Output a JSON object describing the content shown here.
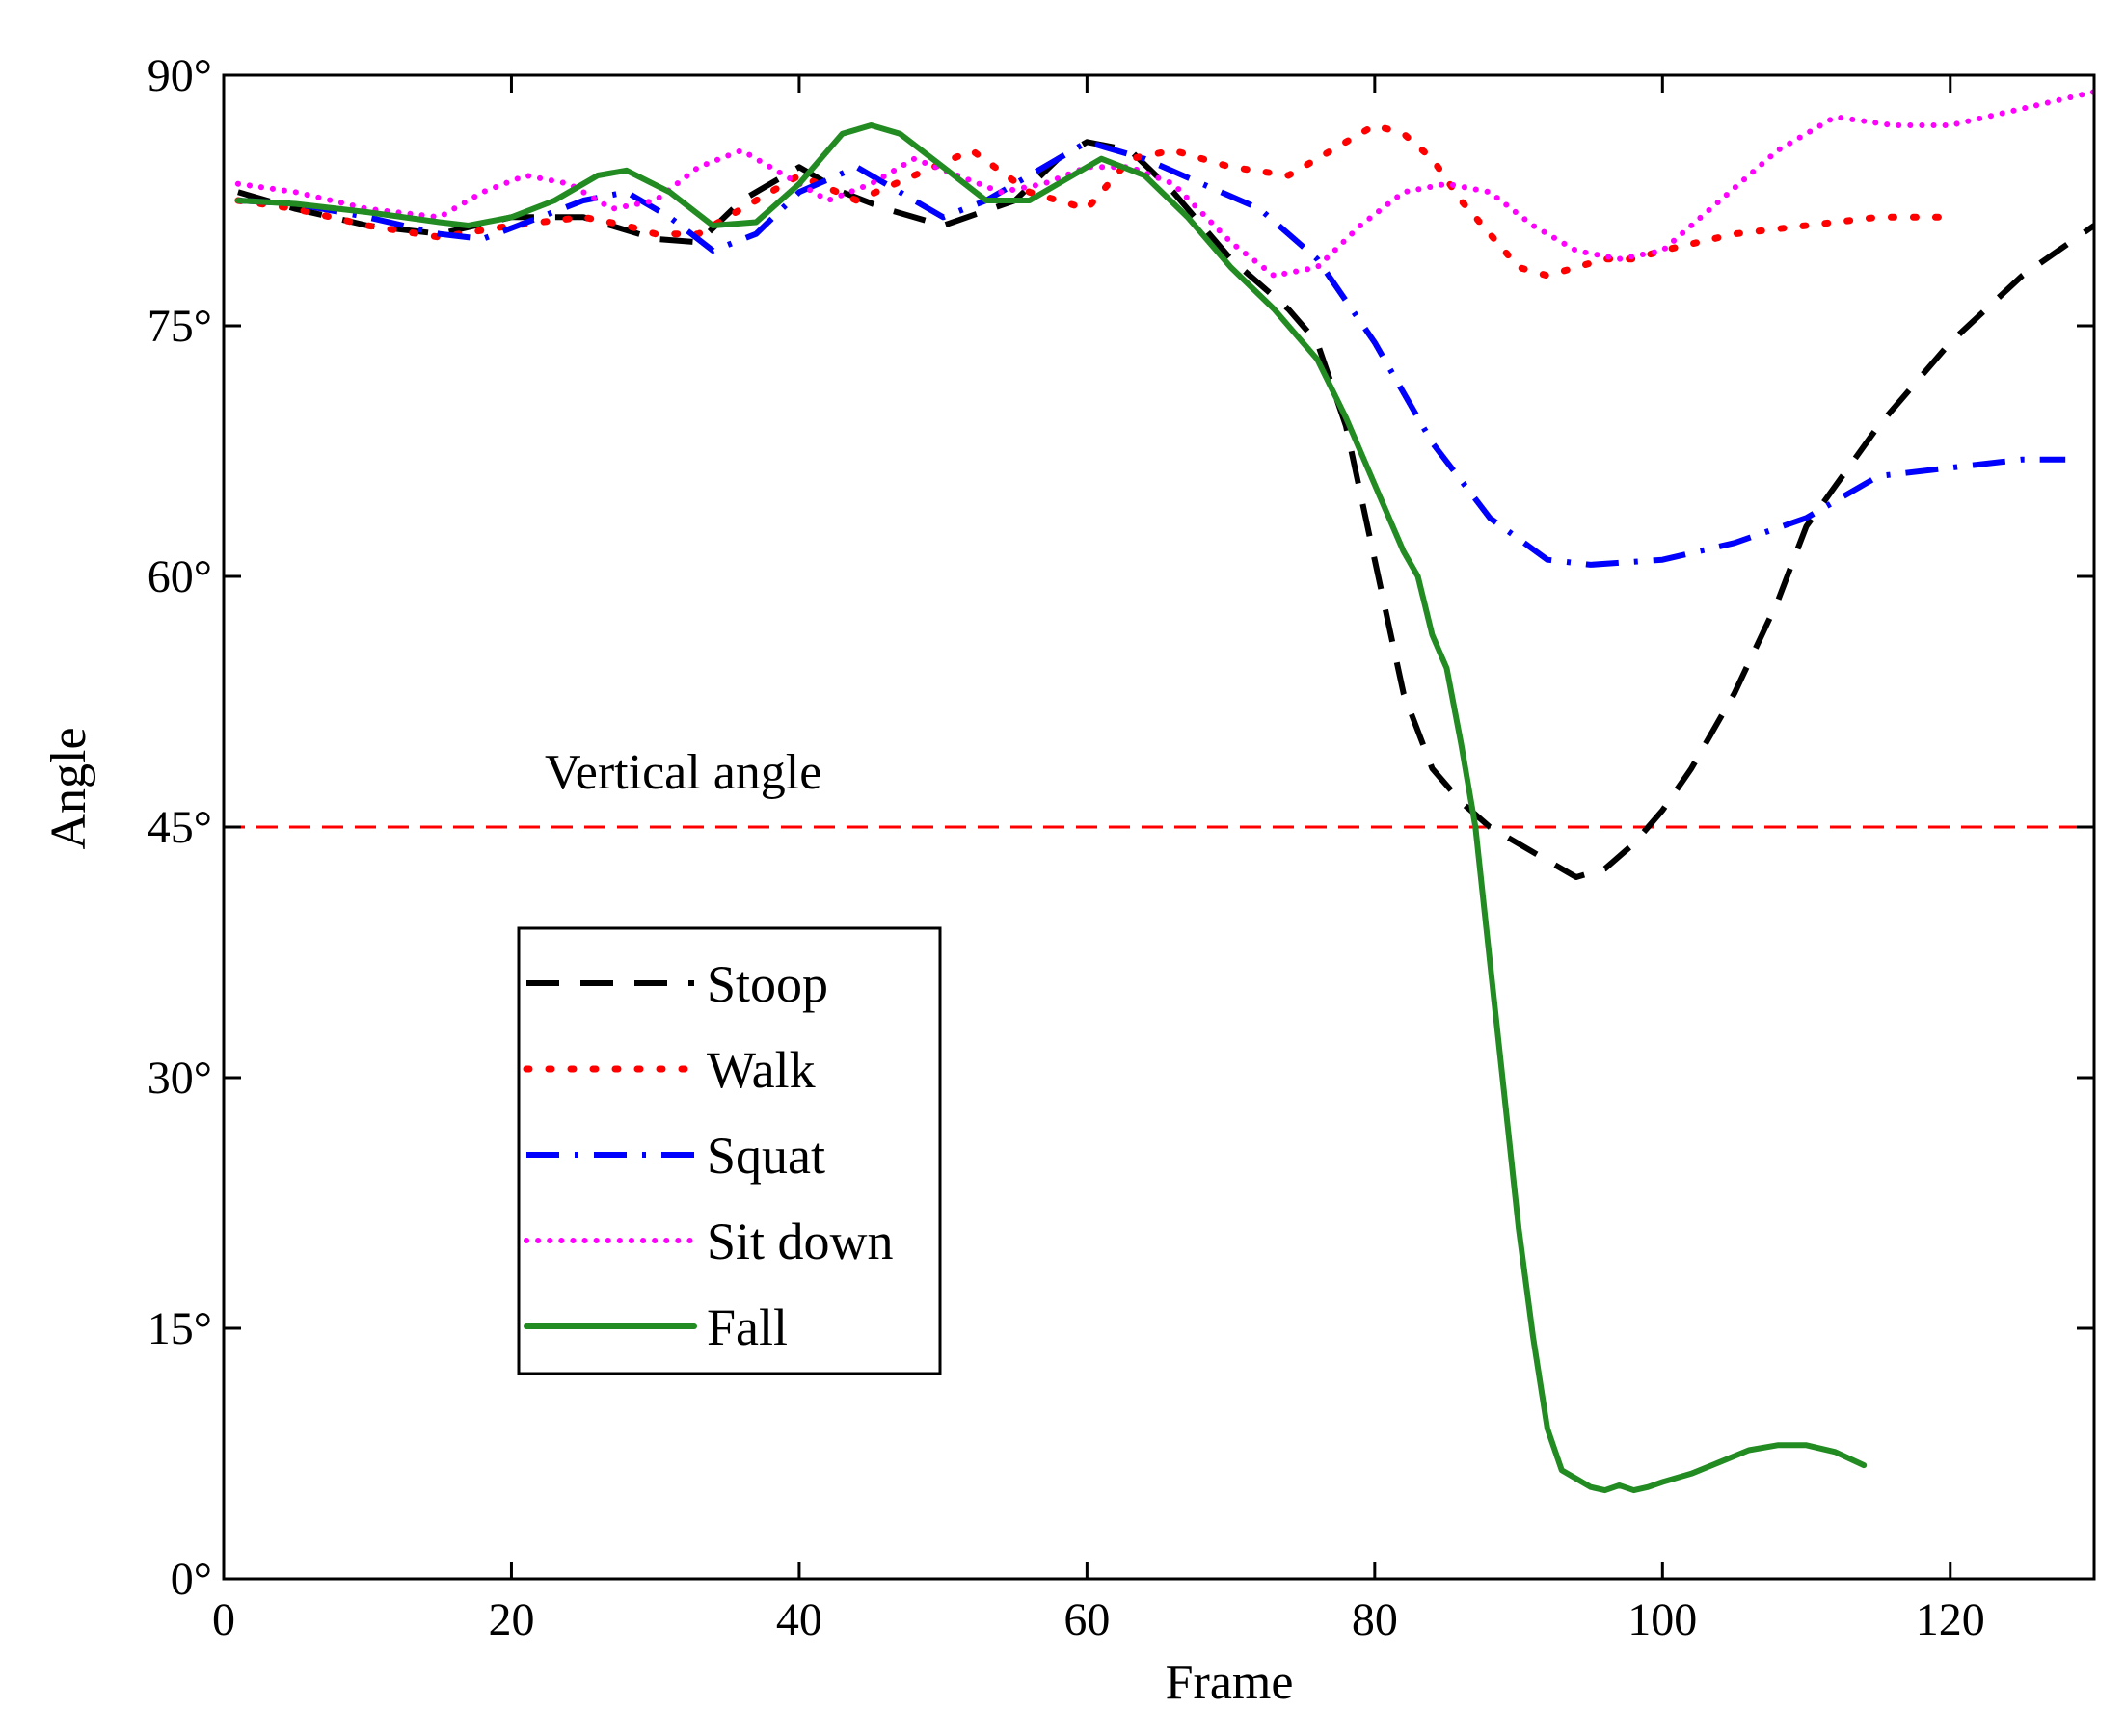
{
  "chart_data": {
    "type": "line",
    "title": "",
    "xlabel": "Frame",
    "ylabel": "Angle",
    "xlim": [
      0,
      130
    ],
    "ylim": [
      0,
      90
    ],
    "xticks": [
      0,
      20,
      40,
      60,
      80,
      100,
      120
    ],
    "xtick_labels": [
      "0",
      "20",
      "40",
      "60",
      "80",
      "100",
      "120"
    ],
    "yticks": [
      0,
      15,
      30,
      45,
      60,
      75,
      90
    ],
    "ytick_labels": [
      "0°",
      "15°",
      "30°",
      "45°",
      "60°",
      "75°",
      "90°"
    ],
    "grid": false,
    "legend_position": "lower-left",
    "threshold": {
      "label": "Vertical angle",
      "value": 45,
      "color": "#ff0000"
    },
    "series": [
      {
        "name": "Stoop",
        "color": "#000000",
        "style": "dashed",
        "x": [
          1,
          5,
          10,
          15,
          20,
          25,
          30,
          33,
          36,
          40,
          43,
          46,
          50,
          55,
          58,
          60,
          63,
          66,
          70,
          74,
          76,
          78,
          80,
          82,
          84,
          86,
          88,
          90,
          92,
          94,
          96,
          98,
          100,
          102,
          105,
          108,
          110,
          115,
          120,
          125,
          130
        ],
        "y": [
          83,
          82,
          81,
          80.5,
          81.5,
          81.5,
          80.2,
          80,
          82.5,
          84.5,
          83,
          82,
          81,
          82.5,
          85,
          86,
          85.5,
          83,
          79,
          76,
          74,
          69,
          61,
          53,
          48.5,
          46.5,
          45,
          44,
          43,
          42,
          42.5,
          44,
          46,
          48.5,
          53,
          58.5,
          63,
          69,
          74,
          78,
          81
        ]
      },
      {
        "name": "Walk",
        "color": "#ff0000",
        "style": "dotted",
        "x": [
          1,
          5,
          10,
          15,
          20,
          25,
          28,
          30,
          33,
          36,
          40,
          44,
          48,
          52,
          56,
          60,
          63,
          66,
          70,
          74,
          77,
          80,
          82,
          84,
          86,
          88,
          90,
          92,
          94,
          96,
          98,
          100,
          105,
          110,
          115,
          120
        ],
        "y": [
          82.5,
          82,
          81,
          80.3,
          81,
          81.5,
          81,
          80.5,
          80.5,
          82,
          84,
          82.5,
          84,
          85.5,
          83,
          82,
          85,
          85.5,
          84.5,
          84,
          85.5,
          87,
          86.5,
          85,
          82.5,
          80.5,
          78.5,
          78,
          78.5,
          79,
          79,
          79.5,
          80.5,
          81,
          81.5,
          81.5
        ]
      },
      {
        "name": "Squat",
        "color": "#0000ff",
        "style": "dashdot",
        "x": [
          1,
          5,
          10,
          15,
          18,
          22,
          25,
          28,
          31,
          34,
          37,
          40,
          44,
          47,
          50,
          53,
          56,
          60,
          64,
          68,
          72,
          76,
          80,
          84,
          88,
          92,
          95,
          100,
          105,
          110,
          115,
          120,
          125,
          128
        ],
        "y": [
          82.5,
          82.3,
          81.5,
          80.5,
          80.2,
          81.5,
          82.5,
          83,
          81.5,
          79.5,
          80.5,
          83,
          84.5,
          83,
          81.5,
          82.5,
          84,
          86,
          85,
          83.5,
          82,
          79,
          74,
          68,
          63.5,
          61,
          60.7,
          61,
          62,
          63.5,
          66,
          66.5,
          67,
          67
        ]
      },
      {
        "name": "Sit down",
        "color": "#ff00ff",
        "style": "dotted-fine",
        "x": [
          1,
          5,
          10,
          15,
          18,
          21,
          24,
          27,
          30,
          33,
          36,
          39,
          42,
          45,
          48,
          51,
          54,
          57,
          60,
          63,
          66,
          70,
          73,
          76,
          79,
          82,
          85,
          88,
          91,
          94,
          97,
          100,
          104,
          108,
          112,
          116,
          120,
          125,
          130
        ],
        "y": [
          83.5,
          83,
          82,
          81.5,
          83,
          84,
          83.5,
          82,
          82.5,
          84.5,
          85.5,
          84,
          82.5,
          83.5,
          85,
          84,
          83,
          83.5,
          84.5,
          84.5,
          83.5,
          80,
          78,
          78.5,
          81,
          83,
          83.5,
          83,
          81,
          79.5,
          79,
          79.5,
          82.5,
          85.5,
          87.5,
          87,
          87,
          88,
          89
        ]
      },
      {
        "name": "Fall",
        "color": "#228b22",
        "style": "solid",
        "x": [
          1,
          5,
          10,
          15,
          17,
          20,
          23,
          26,
          28,
          31,
          34,
          37,
          40,
          43,
          45,
          47,
          50,
          53,
          56,
          58,
          61,
          64,
          67,
          70,
          73,
          76,
          78,
          80,
          82,
          83,
          84,
          85,
          86,
          87,
          88,
          89,
          90,
          91,
          92,
          93,
          94,
          95,
          96,
          97,
          98,
          99,
          100,
          102,
          104,
          106,
          108,
          110,
          112,
          114
        ],
        "y": [
          82.5,
          82.3,
          81.8,
          81.2,
          81,
          81.5,
          82.5,
          84,
          84.3,
          83,
          81,
          81.2,
          83.5,
          86.5,
          87,
          86.5,
          84.5,
          82.5,
          82.5,
          83.5,
          85,
          84,
          81.5,
          78.5,
          76,
          73,
          69.5,
          65.5,
          61.5,
          60,
          56.5,
          54.5,
          50,
          45,
          37,
          29,
          21,
          14.5,
          9,
          6.5,
          6,
          5.5,
          5.3,
          5.6,
          5.3,
          5.5,
          5.8,
          6.3,
          7,
          7.7,
          8,
          8,
          7.6,
          6.8
        ]
      }
    ]
  }
}
